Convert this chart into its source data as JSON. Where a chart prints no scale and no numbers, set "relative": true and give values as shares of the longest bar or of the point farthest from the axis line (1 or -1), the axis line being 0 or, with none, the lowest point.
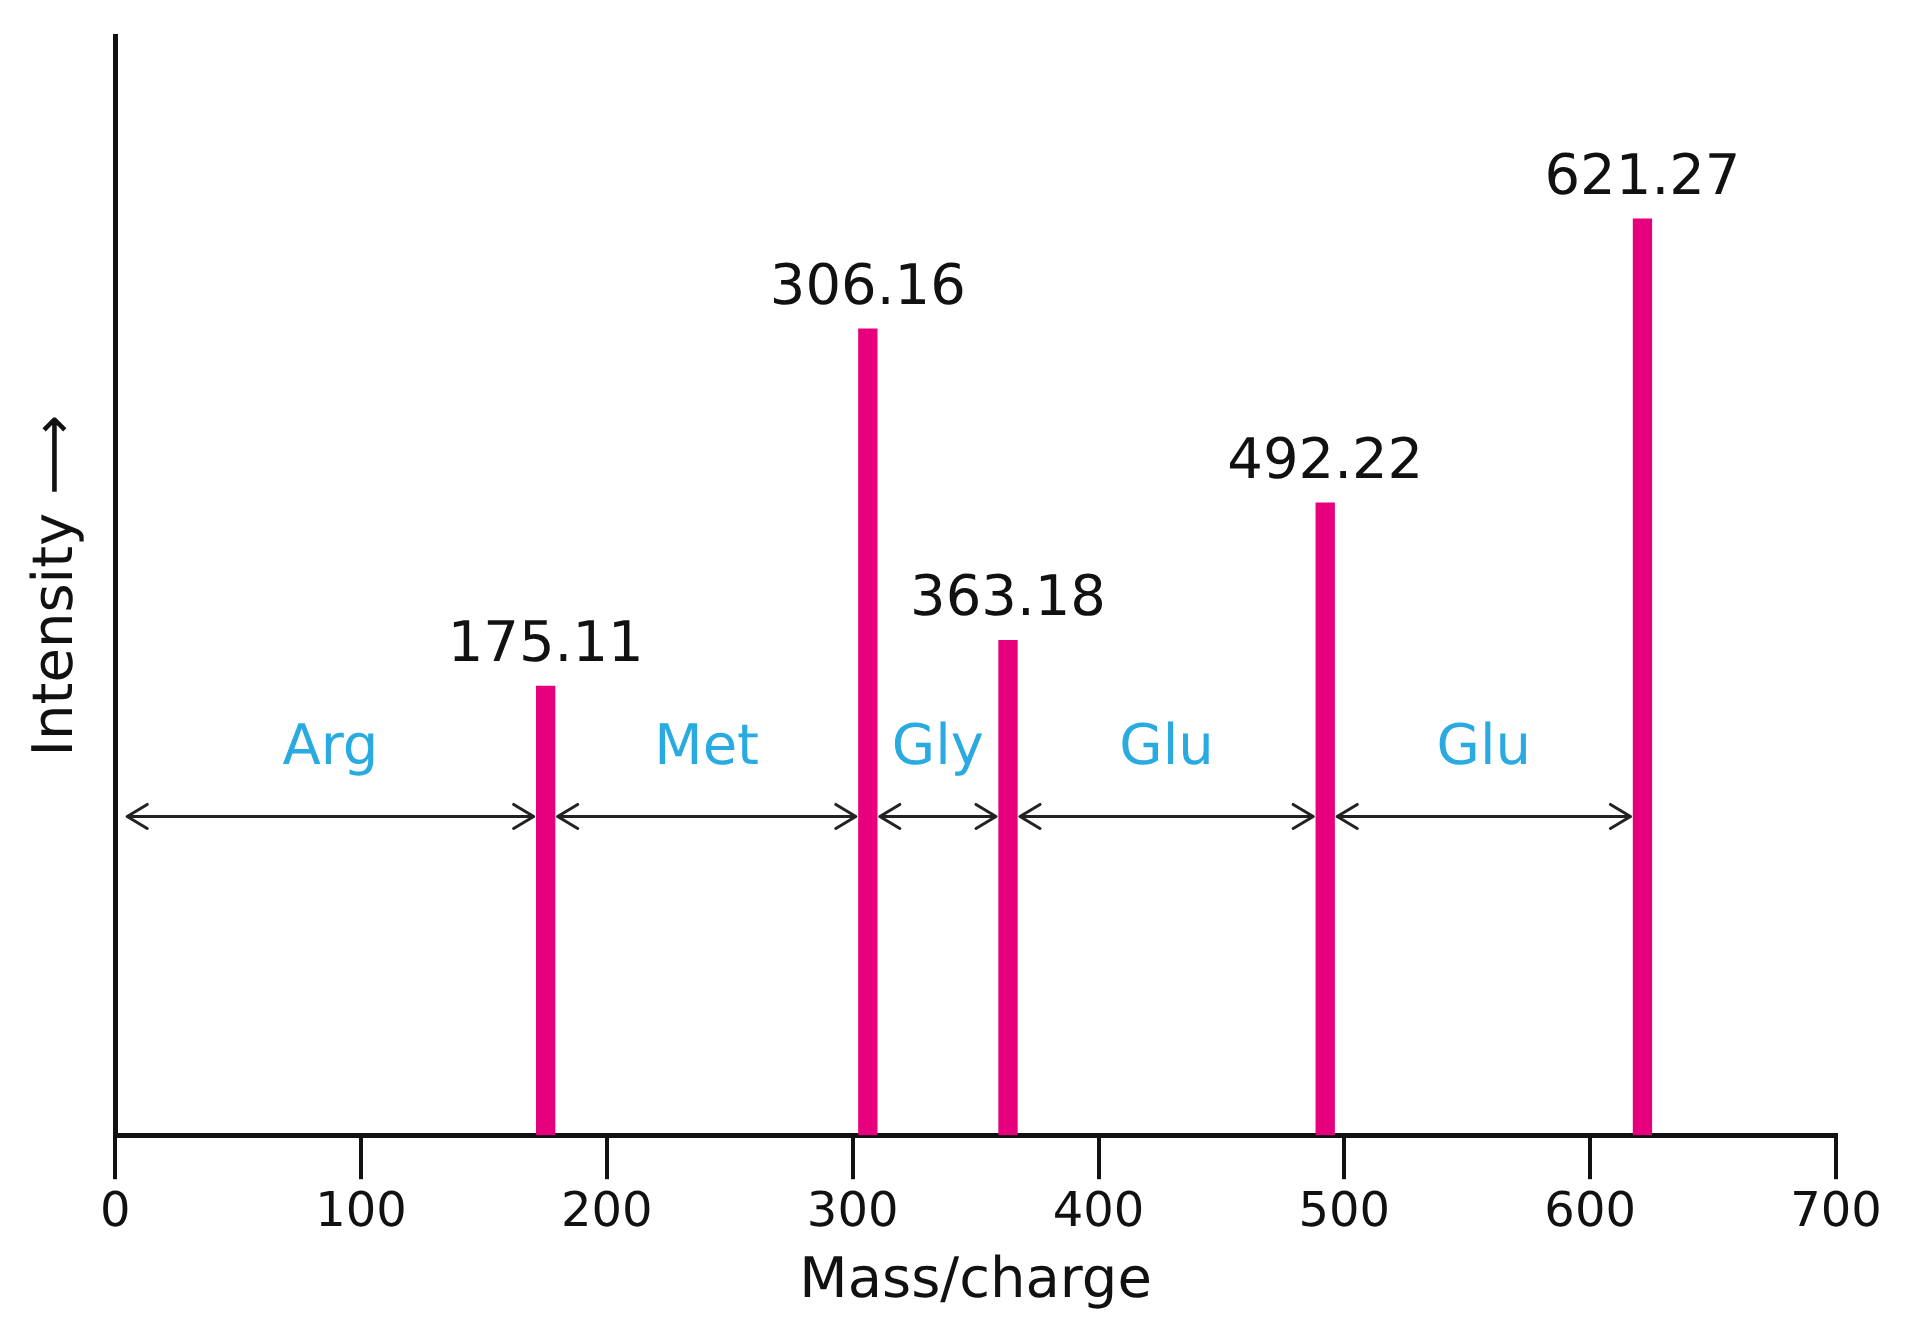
{
  "chart_data": {
    "type": "bar",
    "relative": true,
    "xlabel": "Mass/charge",
    "ylabel": "Intensity ⟶",
    "x": [
      175.11,
      306.16,
      363.18,
      492.22,
      621.27
    ],
    "values": [
      0.49,
      0.88,
      0.54,
      0.69,
      1
    ],
    "color": "#e6007e",
    "xlim": [
      0,
      700
    ],
    "xticks": [
      0,
      100,
      200,
      300,
      400,
      500,
      600,
      700
    ],
    "annotations": [
      {
        "text": "175.11",
        "x": 175.11,
        "y": 0.49
      },
      {
        "text": "306.16",
        "x": 306.16,
        "y": 0.88
      },
      {
        "text": "363.18",
        "x": 363.18,
        "y": 0.54
      },
      {
        "text": "492.22",
        "x": 492.22,
        "y": 0.69
      },
      {
        "text": "621.27",
        "x": 621.27,
        "y": 1
      },
      "Arg",
      "Met",
      "Gly",
      "Glu",
      "Glu"
    ]
  }
}
